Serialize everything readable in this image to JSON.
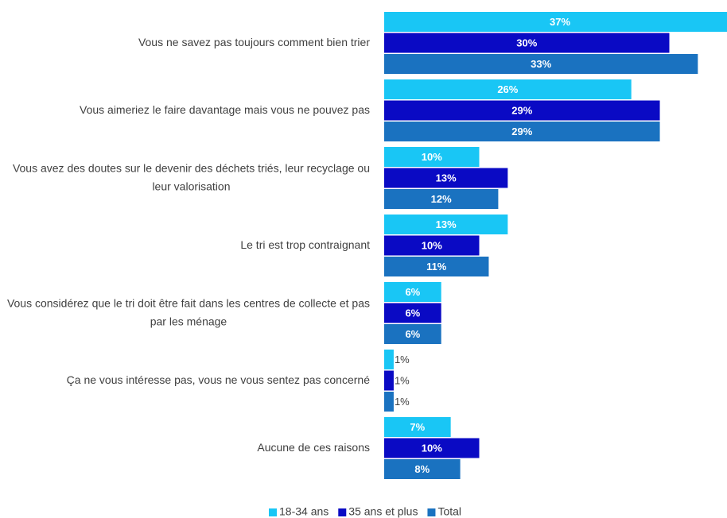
{
  "chart_data": {
    "type": "bar",
    "orientation": "horizontal",
    "categories": [
      "Vous ne savez pas toujours comment bien trier",
      "Vous aimeriez le faire davantage mais vous ne pouvez pas",
      "Vous avez des doutes sur le devenir des déchets triés, leur recyclage ou leur valorisation",
      "Le tri est trop contraignant",
      "Vous considérez que le tri doit être fait dans les centres de collecte et pas par les ménage",
      "Ça ne vous intéresse pas, vous ne vous sentez pas concerné",
      "Aucune de ces raisons"
    ],
    "series": [
      {
        "name": "18-34 ans",
        "color": "#19c6f5",
        "values": [
          37,
          26,
          10,
          13,
          6,
          1,
          7
        ],
        "value_labels": [
          "37%",
          "26%",
          "10%",
          "13%",
          "6%",
          "1%",
          "7%"
        ]
      },
      {
        "name": "35 ans et plus",
        "color": "#0a0ac4",
        "values": [
          30,
          29,
          13,
          10,
          6,
          1,
          10
        ],
        "value_labels": [
          "30%",
          "29%",
          "13%",
          "10%",
          "6%",
          "1%",
          "10%"
        ]
      },
      {
        "name": "Total",
        "color": "#1a72c0",
        "values": [
          33,
          29,
          12,
          11,
          6,
          1,
          8
        ],
        "value_labels": [
          "33%",
          "29%",
          "12%",
          "11%",
          "6%",
          "1%",
          "8%"
        ]
      }
    ],
    "legend": "bottom"
  }
}
